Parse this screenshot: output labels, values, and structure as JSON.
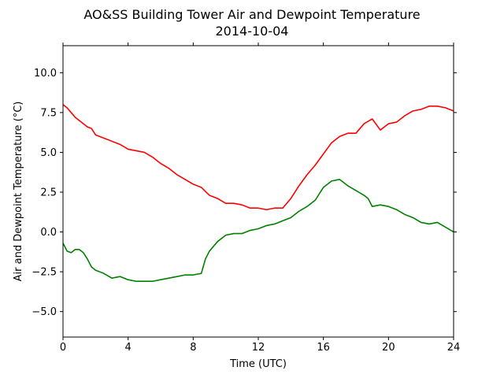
{
  "chart_data": {
    "type": "line",
    "title": "AO&SS Building Tower Air and Dewpoint Temperature",
    "subtitle": "2014-10-04",
    "xlabel": "Time (UTC)",
    "ylabel": "Air and Dewpoint Temperature (°C)",
    "xlim": [
      0,
      24
    ],
    "ylim": [
      -6.6,
      11.7
    ],
    "x_ticks": [
      0,
      4,
      8,
      12,
      16,
      20,
      24
    ],
    "x_tick_labels": [
      "0",
      "4",
      "8",
      "12",
      "16",
      "20",
      "24"
    ],
    "y_ticks": [
      -5.0,
      -2.5,
      0.0,
      2.5,
      5.0,
      7.5,
      10.0
    ],
    "y_tick_labels": [
      "−5.0",
      "−2.5",
      "0.0",
      "2.5",
      "5.0",
      "7.5",
      "10.0"
    ],
    "grid": false,
    "series": [
      {
        "color": "#ff0000",
        "x": [
          0,
          0.25,
          0.5,
          0.75,
          1,
          1.25,
          1.5,
          1.75,
          2,
          2.5,
          3,
          3.5,
          4,
          4.5,
          5,
          5.5,
          6,
          6.5,
          7,
          7.5,
          8,
          8.5,
          9,
          9.5,
          10,
          10.5,
          11,
          11.5,
          12,
          12.5,
          13,
          13.5,
          14,
          14.5,
          15,
          15.5,
          16,
          16.5,
          17,
          17.5,
          18,
          18.5,
          19,
          19.5,
          20,
          20.5,
          21,
          21.5,
          22,
          22.5,
          23,
          23.5,
          24
        ],
        "y": [
          8.0,
          7.8,
          7.5,
          7.2,
          7.0,
          6.8,
          6.6,
          6.5,
          6.1,
          5.9,
          5.7,
          5.5,
          5.2,
          5.1,
          5.0,
          4.7,
          4.3,
          4.0,
          3.6,
          3.3,
          3.0,
          2.8,
          2.3,
          2.1,
          1.8,
          1.8,
          1.7,
          1.5,
          1.5,
          1.4,
          1.5,
          1.5,
          2.1,
          2.9,
          3.6,
          4.2,
          4.9,
          5.6,
          6.0,
          6.2,
          6.2,
          6.8,
          7.1,
          6.4,
          6.8,
          6.9,
          7.3,
          7.6,
          7.7,
          7.9,
          7.9,
          7.8,
          7.6
        ]
      },
      {
        "color": "#008000",
        "x": [
          0,
          0.25,
          0.5,
          0.75,
          1,
          1.25,
          1.5,
          1.75,
          2,
          2.5,
          3,
          3.5,
          4,
          4.5,
          5,
          5.5,
          6,
          6.5,
          7,
          7.5,
          8,
          8.5,
          8.75,
          9,
          9.5,
          10,
          10.5,
          11,
          11.5,
          12,
          12.5,
          13,
          13.5,
          14,
          14.5,
          15,
          15.5,
          16,
          16.5,
          17,
          17.5,
          18,
          18.5,
          18.75,
          19,
          19.5,
          20,
          20.5,
          21,
          21.5,
          22,
          22.5,
          23,
          23.5,
          24
        ],
        "y": [
          -0.7,
          -1.2,
          -1.3,
          -1.1,
          -1.1,
          -1.3,
          -1.7,
          -2.2,
          -2.4,
          -2.6,
          -2.9,
          -2.8,
          -3.0,
          -3.1,
          -3.1,
          -3.1,
          -3.0,
          -2.9,
          -2.8,
          -2.7,
          -2.7,
          -2.6,
          -1.7,
          -1.2,
          -0.6,
          -0.2,
          -0.1,
          -0.1,
          0.1,
          0.2,
          0.4,
          0.5,
          0.7,
          0.9,
          1.3,
          1.6,
          2.0,
          2.8,
          3.2,
          3.3,
          2.9,
          2.6,
          2.3,
          2.1,
          1.6,
          1.7,
          1.6,
          1.4,
          1.1,
          0.9,
          0.6,
          0.5,
          0.6,
          0.3,
          0.0
        ]
      }
    ]
  }
}
